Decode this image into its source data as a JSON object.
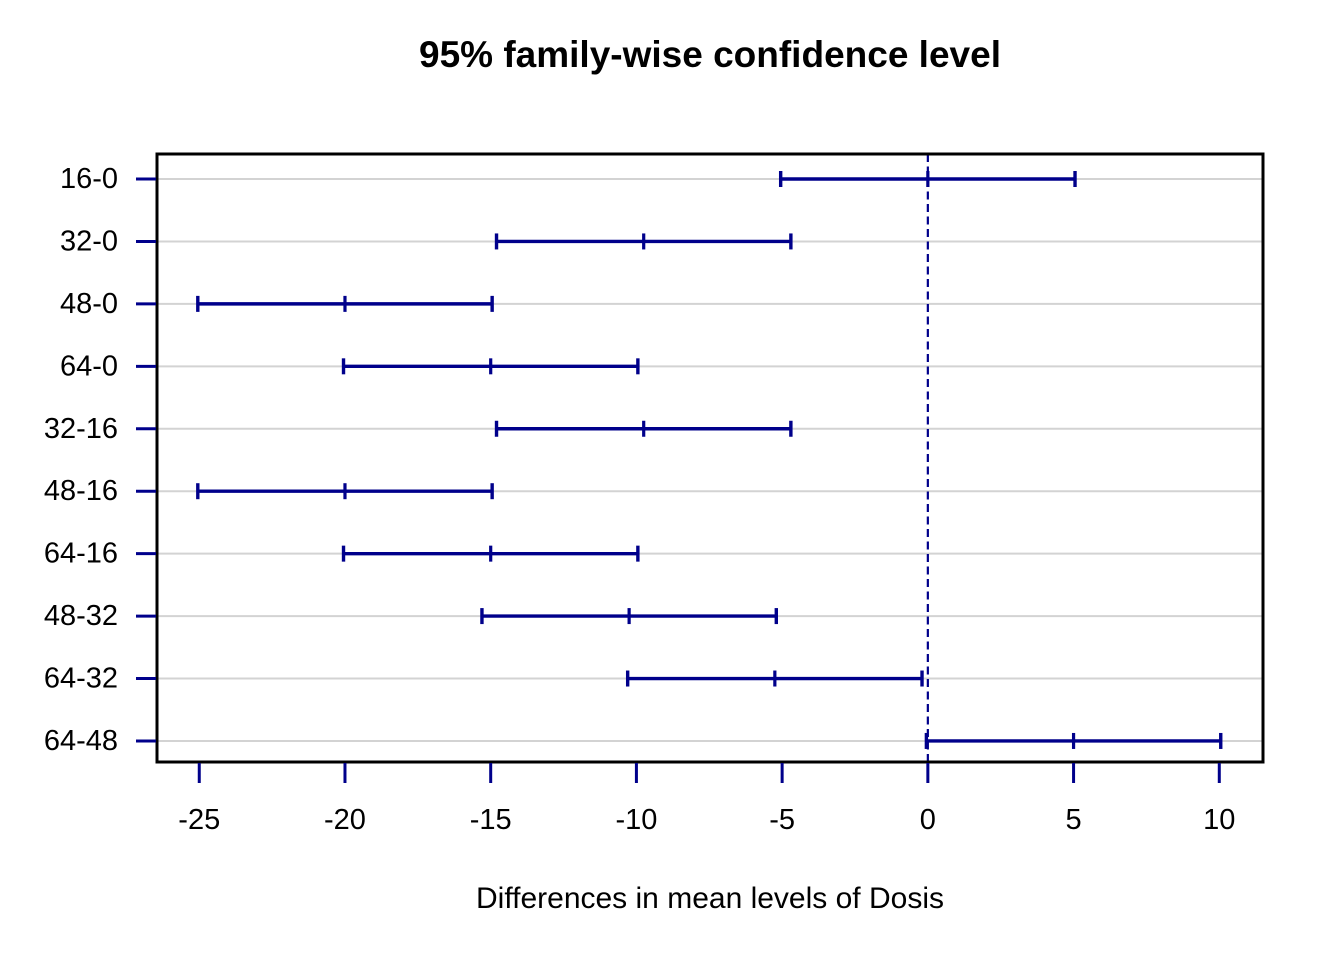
{
  "chart_data": {
    "type": "errorbar",
    "title": "95% family-wise confidence level",
    "xlabel": "Differences in mean levels of Dosis",
    "ylabel": "",
    "categories": [
      "16-0",
      "32-0",
      "48-0",
      "64-0",
      "32-16",
      "48-16",
      "64-16",
      "48-32",
      "64-32",
      "64-48"
    ],
    "intervals": [
      {
        "pair": "16-0",
        "diff": 0.0,
        "lwr": -5.05,
        "upr": 5.05
      },
      {
        "pair": "32-0",
        "diff": -9.75,
        "lwr": -14.8,
        "upr": -4.7
      },
      {
        "pair": "48-0",
        "diff": -20.0,
        "lwr": -25.05,
        "upr": -14.95
      },
      {
        "pair": "64-0",
        "diff": -15.0,
        "lwr": -20.05,
        "upr": -9.95
      },
      {
        "pair": "32-16",
        "diff": -9.75,
        "lwr": -14.8,
        "upr": -4.7
      },
      {
        "pair": "48-16",
        "diff": -20.0,
        "lwr": -25.05,
        "upr": -14.95
      },
      {
        "pair": "64-16",
        "diff": -15.0,
        "lwr": -20.05,
        "upr": -9.95
      },
      {
        "pair": "48-32",
        "diff": -10.25,
        "lwr": -15.3,
        "upr": -5.2
      },
      {
        "pair": "64-32",
        "diff": -5.25,
        "lwr": -10.3,
        "upr": -0.2
      },
      {
        "pair": "64-48",
        "diff": 5.0,
        "lwr": -0.05,
        "upr": 10.05
      }
    ],
    "xticks": [
      -25,
      -20,
      -15,
      -10,
      -5,
      0,
      5,
      10
    ],
    "xlim": [
      -26.45,
      11.5
    ],
    "reference_line_x": 0,
    "grid": true,
    "legend": "none",
    "colors": {
      "interval": "#00008B",
      "reference_line": "#00008B",
      "axis_ticks": "#00008B",
      "grid": "#d3d3d3",
      "box": "#000000",
      "text": "#000000",
      "background": "#ffffff"
    }
  }
}
